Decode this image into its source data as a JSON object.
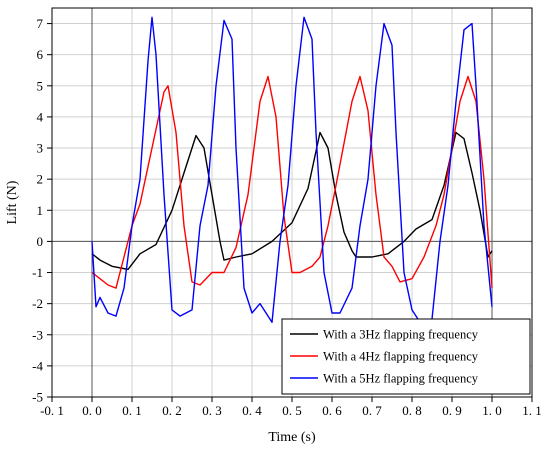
{
  "chart_data": {
    "type": "line",
    "title": "",
    "xlabel": "Time (s)",
    "ylabel": "Lift (N)",
    "xlim": [
      -0.1,
      1.1
    ],
    "ylim": [
      -5,
      7.5
    ],
    "xticks": [
      -0.1,
      0.0,
      0.1,
      0.2,
      0.3,
      0.4,
      0.5,
      0.6,
      0.7,
      0.8,
      0.9,
      1.0,
      1.1
    ],
    "xtick_labels": [
      "-0. 1",
      "0. 0",
      "0. 1",
      "0. 2",
      "0. 3",
      "0. 4",
      "0. 5",
      "0. 6",
      "0. 7",
      "0. 8",
      "0. 9",
      "1. 0",
      "1. 1"
    ],
    "yticks": [
      -5,
      -4,
      -3,
      -2,
      -1,
      0,
      1,
      2,
      3,
      4,
      5,
      6,
      7
    ],
    "ytick_labels": [
      "-5",
      "-4",
      "-3",
      "-2",
      "-1",
      "0",
      "1",
      "2",
      "3",
      "4",
      "5",
      "6",
      "7"
    ],
    "grid": true,
    "legend_position": "bottom-right",
    "series": [
      {
        "name": "With a 3Hz flapping frequency",
        "color": "#000000",
        "x": [
          0.0,
          0.02,
          0.05,
          0.09,
          0.12,
          0.16,
          0.2,
          0.23,
          0.26,
          0.28,
          0.3,
          0.32,
          0.33,
          0.36,
          0.4,
          0.45,
          0.5,
          0.54,
          0.57,
          0.59,
          0.61,
          0.63,
          0.65,
          0.66,
          0.7,
          0.74,
          0.78,
          0.81,
          0.85,
          0.88,
          0.91,
          0.93,
          0.95,
          0.97,
          0.99,
          1.0
        ],
        "y": [
          -0.4,
          -0.6,
          -0.8,
          -0.9,
          -0.4,
          -0.1,
          1.0,
          2.2,
          3.4,
          3.0,
          1.5,
          0.0,
          -0.6,
          -0.5,
          -0.4,
          0.0,
          0.6,
          1.7,
          3.5,
          3.0,
          1.5,
          0.3,
          -0.3,
          -0.5,
          -0.5,
          -0.4,
          0.0,
          0.4,
          0.7,
          1.8,
          3.5,
          3.3,
          2.2,
          1.0,
          -0.5,
          -0.3
        ]
      },
      {
        "name": "With a 4Hz flapping frequency",
        "color": "#ff0000",
        "x": [
          0.0,
          0.02,
          0.04,
          0.06,
          0.08,
          0.1,
          0.12,
          0.15,
          0.18,
          0.19,
          0.21,
          0.23,
          0.25,
          0.27,
          0.3,
          0.33,
          0.36,
          0.39,
          0.42,
          0.44,
          0.46,
          0.48,
          0.5,
          0.52,
          0.55,
          0.57,
          0.59,
          0.61,
          0.65,
          0.67,
          0.69,
          0.71,
          0.73,
          0.75,
          0.77,
          0.8,
          0.83,
          0.86,
          0.88,
          0.9,
          0.92,
          0.94,
          0.96,
          0.98,
          1.0
        ],
        "y": [
          -1.0,
          -1.2,
          -1.4,
          -1.5,
          -0.5,
          0.5,
          1.2,
          3.0,
          4.8,
          5.0,
          3.5,
          0.5,
          -1.3,
          -1.4,
          -1.0,
          -1.0,
          -0.2,
          1.5,
          4.5,
          5.3,
          4.0,
          0.8,
          -1.0,
          -1.0,
          -0.8,
          -0.5,
          0.5,
          1.8,
          4.5,
          5.3,
          4.2,
          1.5,
          -0.5,
          -0.8,
          -1.3,
          -1.2,
          -0.5,
          0.5,
          1.5,
          3.0,
          4.5,
          5.3,
          4.5,
          2.0,
          -1.5
        ]
      },
      {
        "name": "With a 5Hz flapping frequency",
        "color": "#0000ff",
        "x": [
          0.0,
          0.01,
          0.02,
          0.04,
          0.06,
          0.08,
          0.1,
          0.12,
          0.14,
          0.15,
          0.16,
          0.18,
          0.2,
          0.22,
          0.25,
          0.27,
          0.29,
          0.31,
          0.33,
          0.35,
          0.36,
          0.38,
          0.4,
          0.42,
          0.45,
          0.47,
          0.49,
          0.51,
          0.53,
          0.55,
          0.56,
          0.58,
          0.6,
          0.62,
          0.65,
          0.67,
          0.69,
          0.71,
          0.73,
          0.75,
          0.76,
          0.78,
          0.8,
          0.82,
          0.85,
          0.87,
          0.89,
          0.91,
          0.93,
          0.95,
          0.96,
          0.98,
          1.0
        ],
        "y": [
          0.0,
          -2.1,
          -1.8,
          -2.3,
          -2.4,
          -1.5,
          0.5,
          2.0,
          5.8,
          7.2,
          6.0,
          1.5,
          -2.2,
          -2.4,
          -2.2,
          0.5,
          1.8,
          5.0,
          7.1,
          6.5,
          3.0,
          -1.5,
          -2.3,
          -2.0,
          -2.6,
          0.0,
          1.8,
          5.0,
          7.2,
          6.5,
          3.5,
          -1.0,
          -2.3,
          -2.3,
          -1.5,
          0.5,
          2.0,
          5.0,
          7.0,
          6.3,
          3.5,
          -1.0,
          -2.2,
          -2.6,
          -2.5,
          0.0,
          1.8,
          4.5,
          6.8,
          7.0,
          5.0,
          0.5,
          -2.1
        ]
      }
    ]
  }
}
